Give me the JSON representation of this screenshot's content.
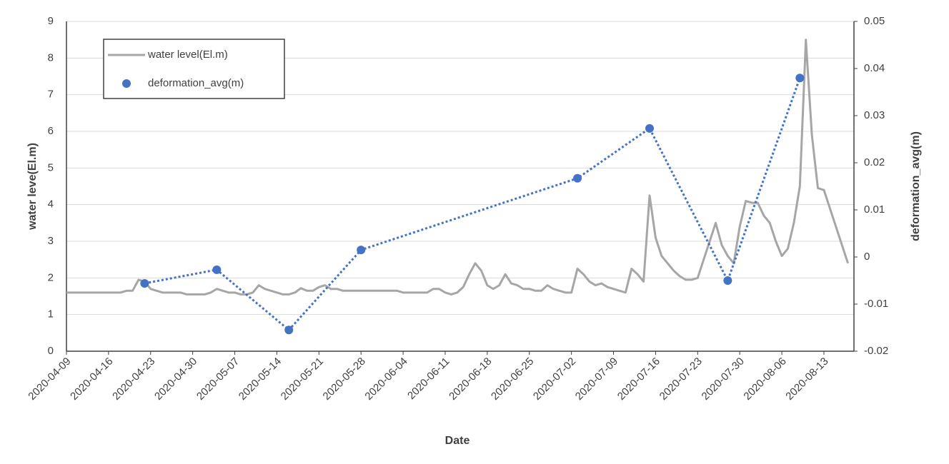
{
  "chart_data": {
    "type": "line",
    "xlabel": "Date",
    "ylabel": "water leve(El.m)",
    "y2label": "deformation_avg(m)",
    "xlim": [
      "2020-04-09",
      "2020-08-18"
    ],
    "xticks": [
      "2020-04-09",
      "2020-04-16",
      "2020-04-23",
      "2020-04-30",
      "2020-05-07",
      "2020-05-14",
      "2020-05-21",
      "2020-05-28",
      "2020-06-04",
      "2020-06-11",
      "2020-06-18",
      "2020-06-25",
      "2020-07-02",
      "2020-07-09",
      "2020-07-16",
      "2020-07-23",
      "2020-07-30",
      "2020-08-06",
      "2020-08-13"
    ],
    "ylim": [
      0,
      9
    ],
    "yticks": [
      0,
      1,
      2,
      3,
      4,
      5,
      6,
      7,
      8,
      9
    ],
    "y2lim": [
      -0.02,
      0.05
    ],
    "y2ticks": [
      -0.02,
      -0.01,
      0,
      0.01,
      0.02,
      0.03,
      0.04,
      0.05
    ],
    "grid": true,
    "legend": "upper-left",
    "series": [
      {
        "name": "water level(El.m)",
        "color": "#a6a6a6",
        "style": "solid",
        "x": [
          "2020-04-09",
          "2020-04-10",
          "2020-04-11",
          "2020-04-12",
          "2020-04-13",
          "2020-04-14",
          "2020-04-15",
          "2020-04-16",
          "2020-04-17",
          "2020-04-18",
          "2020-04-19",
          "2020-04-20",
          "2020-04-21",
          "2020-04-22",
          "2020-04-23",
          "2020-04-24",
          "2020-04-25",
          "2020-04-26",
          "2020-04-27",
          "2020-04-28",
          "2020-04-29",
          "2020-04-30",
          "2020-05-01",
          "2020-05-02",
          "2020-05-03",
          "2020-05-04",
          "2020-05-05",
          "2020-05-06",
          "2020-05-07",
          "2020-05-08",
          "2020-05-09",
          "2020-05-10",
          "2020-05-11",
          "2020-05-12",
          "2020-05-13",
          "2020-05-14",
          "2020-05-15",
          "2020-05-16",
          "2020-05-17",
          "2020-05-18",
          "2020-05-19",
          "2020-05-20",
          "2020-05-21",
          "2020-05-22",
          "2020-05-23",
          "2020-05-24",
          "2020-05-25",
          "2020-05-26",
          "2020-05-27",
          "2020-05-28",
          "2020-05-29",
          "2020-05-30",
          "2020-05-31",
          "2020-06-01",
          "2020-06-02",
          "2020-06-03",
          "2020-06-04",
          "2020-06-05",
          "2020-06-06",
          "2020-06-07",
          "2020-06-08",
          "2020-06-09",
          "2020-06-10",
          "2020-06-11",
          "2020-06-12",
          "2020-06-13",
          "2020-06-14",
          "2020-06-15",
          "2020-06-16",
          "2020-06-17",
          "2020-06-18",
          "2020-06-19",
          "2020-06-20",
          "2020-06-21",
          "2020-06-22",
          "2020-06-23",
          "2020-06-24",
          "2020-06-25",
          "2020-06-26",
          "2020-06-27",
          "2020-06-28",
          "2020-06-29",
          "2020-06-30",
          "2020-07-01",
          "2020-07-02",
          "2020-07-03",
          "2020-07-04",
          "2020-07-05",
          "2020-07-06",
          "2020-07-07",
          "2020-07-08",
          "2020-07-09",
          "2020-07-10",
          "2020-07-11",
          "2020-07-12",
          "2020-07-13",
          "2020-07-14",
          "2020-07-15",
          "2020-07-16",
          "2020-07-17",
          "2020-07-18",
          "2020-07-19",
          "2020-07-20",
          "2020-07-21",
          "2020-07-22",
          "2020-07-23",
          "2020-07-24",
          "2020-07-25",
          "2020-07-26",
          "2020-07-27",
          "2020-07-28",
          "2020-07-29",
          "2020-07-30",
          "2020-07-31",
          "2020-08-01",
          "2020-08-02",
          "2020-08-03",
          "2020-08-04",
          "2020-08-05",
          "2020-08-06",
          "2020-08-07",
          "2020-08-08",
          "2020-08-09",
          "2020-08-10",
          "2020-08-11",
          "2020-08-12",
          "2020-08-13",
          "2020-08-14",
          "2020-08-15",
          "2020-08-16",
          "2020-08-17"
        ],
        "values": [
          1.6,
          1.6,
          1.6,
          1.6,
          1.6,
          1.6,
          1.6,
          1.6,
          1.6,
          1.6,
          1.65,
          1.65,
          1.95,
          1.9,
          1.7,
          1.65,
          1.6,
          1.6,
          1.6,
          1.6,
          1.55,
          1.55,
          1.55,
          1.55,
          1.6,
          1.7,
          1.65,
          1.6,
          1.6,
          1.55,
          1.55,
          1.6,
          1.8,
          1.7,
          1.65,
          1.6,
          1.55,
          1.55,
          1.6,
          1.72,
          1.65,
          1.65,
          1.75,
          1.8,
          1.7,
          1.7,
          1.65,
          1.65,
          1.65,
          1.65,
          1.65,
          1.65,
          1.65,
          1.65,
          1.65,
          1.65,
          1.6,
          1.6,
          1.6,
          1.6,
          1.6,
          1.7,
          1.7,
          1.6,
          1.55,
          1.6,
          1.75,
          2.1,
          2.4,
          2.2,
          1.8,
          1.7,
          1.8,
          2.1,
          1.85,
          1.8,
          1.7,
          1.7,
          1.65,
          1.65,
          1.8,
          1.7,
          1.65,
          1.6,
          1.6,
          2.25,
          2.1,
          1.9,
          1.8,
          1.85,
          1.75,
          1.7,
          1.65,
          1.6,
          2.25,
          2.1,
          1.9,
          4.25,
          3.1,
          2.6,
          2.4,
          2.2,
          2.05,
          1.95,
          1.95,
          2.0,
          2.5,
          3.0,
          3.5,
          2.9,
          2.6,
          2.4,
          3.4,
          4.1,
          4.05,
          4.05,
          3.7,
          3.5,
          3.0,
          2.6,
          2.8,
          3.5,
          4.5,
          8.5,
          5.9,
          4.45,
          4.4,
          3.9,
          3.4,
          2.9,
          2.4
        ]
      },
      {
        "name": "deformation_avg(m)",
        "color": "#4472c4",
        "style": "dotted",
        "axis": "y2",
        "x": [
          "2020-04-22",
          "2020-05-04",
          "2020-05-16",
          "2020-05-28",
          "2020-07-03",
          "2020-07-15",
          "2020-07-28",
          "2020-08-09"
        ],
        "values": [
          -0.0056,
          -0.0027,
          -0.0155,
          0.0015,
          0.0167,
          0.0273,
          -0.005,
          0.038
        ]
      }
    ]
  }
}
